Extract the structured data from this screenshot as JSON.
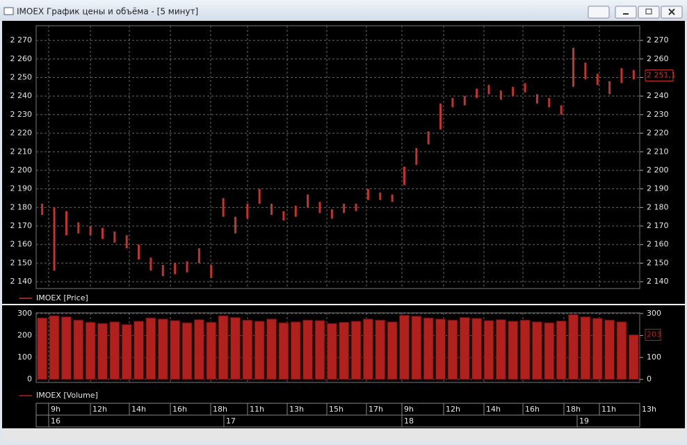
{
  "window": {
    "title": "IMOEX График цены и объёма - [5 минут]"
  },
  "time_axis": {
    "xlim": [
      0,
      100
    ],
    "ticks": [
      {
        "value": 2.07,
        "label": "9h"
      },
      {
        "value": 8.99,
        "label": "12h"
      },
      {
        "value": 15.44,
        "label": "14h"
      },
      {
        "value": 22.24,
        "label": "16h"
      },
      {
        "value": 28.92,
        "label": "18h"
      },
      {
        "value": 35.02,
        "label": "11h"
      },
      {
        "value": 41.59,
        "label": "13h"
      },
      {
        "value": 48.16,
        "label": "15h"
      },
      {
        "value": 54.72,
        "label": "17h"
      },
      {
        "value": 60.6,
        "label": "9h"
      },
      {
        "value": 67.51,
        "label": "12h"
      },
      {
        "value": 74.19,
        "label": "14h"
      },
      {
        "value": 80.65,
        "label": "16h"
      },
      {
        "value": 87.44,
        "label": "18h"
      },
      {
        "value": 93.32,
        "label": "11h"
      },
      {
        "value": 100,
        "label": "13h"
      }
    ],
    "day_ticks": [
      {
        "value": 2.07,
        "label": "16"
      },
      {
        "value": 31.1,
        "label": "17"
      },
      {
        "value": 60.6,
        "label": "18"
      },
      {
        "value": 89.63,
        "label": "19"
      }
    ]
  },
  "chart_data": [
    {
      "type": "ohlc",
      "grid": true,
      "series": [
        {
          "name": "IMOEX [Price]",
          "color": "#c8322c",
          "x": [
            1,
            3,
            5,
            7,
            9,
            11,
            13,
            15,
            17,
            19,
            21,
            23,
            25,
            27,
            29,
            31,
            33,
            35,
            37,
            39,
            41,
            43,
            45,
            47,
            49,
            51,
            53,
            55,
            57,
            59,
            61,
            63,
            65,
            67,
            69,
            71,
            73,
            75,
            77,
            79,
            81,
            83,
            85,
            87,
            89,
            91,
            93,
            95,
            97,
            99
          ],
          "high": [
            2182,
            2180,
            2178,
            2172,
            2170,
            2169,
            2167,
            2165,
            2160,
            2153,
            2149,
            2150,
            2151,
            2158,
            2149,
            2185,
            2175,
            2182,
            2190,
            2182,
            2178,
            2181,
            2187,
            2183,
            2179,
            2182,
            2182,
            2190,
            2188,
            2187,
            2202,
            2212,
            2221,
            2236,
            2239,
            2240,
            2244,
            2246,
            2243,
            2245,
            2247,
            2241,
            2239,
            2235,
            2266,
            2258,
            2252,
            2248,
            2255,
            2254
          ],
          "low": [
            2176,
            2146,
            2165,
            2166,
            2165,
            2163,
            2161,
            2158,
            2152,
            2146,
            2143,
            2144,
            2145,
            2150,
            2142,
            2175,
            2166,
            2174,
            2182,
            2176,
            2173,
            2175,
            2180,
            2177,
            2174,
            2177,
            2178,
            2184,
            2184,
            2183,
            2192,
            2203,
            2214,
            2222,
            2234,
            2235,
            2239,
            2241,
            2238,
            2240,
            2242,
            2236,
            2234,
            2230,
            2245,
            2249,
            2246,
            2241,
            2247,
            2249
          ]
        }
      ],
      "ylim": [
        2136.3,
        2277.9
      ],
      "yticks": [
        {
          "value": 2140,
          "label": "2 140"
        },
        {
          "value": 2150,
          "label": "2 150"
        },
        {
          "value": 2160,
          "label": "2 160"
        },
        {
          "value": 2170,
          "label": "2 170"
        },
        {
          "value": 2180,
          "label": "2 180"
        },
        {
          "value": 2190,
          "label": "2 190"
        },
        {
          "value": 2200,
          "label": "2 200"
        },
        {
          "value": 2210,
          "label": "2 210"
        },
        {
          "value": 2220,
          "label": "2 220"
        },
        {
          "value": 2230,
          "label": "2 230"
        },
        {
          "value": 2240,
          "label": "2 240"
        },
        {
          "value": 2250,
          "label": "2 250"
        },
        {
          "value": 2260,
          "label": "2 260"
        },
        {
          "value": 2270,
          "label": "2 270"
        }
      ],
      "last": {
        "value": 2251.1,
        "label": "2 251,1"
      }
    },
    {
      "type": "bar",
      "grid": true,
      "series": [
        {
          "name": "IMOEX [Volume]",
          "color": "#b0201c",
          "x": [
            1,
            3,
            5,
            7,
            9,
            11,
            13,
            15,
            17,
            19,
            21,
            23,
            25,
            27,
            29,
            31,
            33,
            35,
            37,
            39,
            41,
            43,
            45,
            47,
            49,
            51,
            53,
            55,
            57,
            59,
            61,
            63,
            65,
            67,
            69,
            71,
            73,
            75,
            77,
            79,
            81,
            83,
            85,
            87,
            89,
            91,
            93,
            95,
            97,
            99
          ],
          "values": [
            280,
            290,
            285,
            270,
            260,
            255,
            262,
            250,
            265,
            280,
            275,
            268,
            258,
            272,
            260,
            290,
            282,
            270,
            265,
            275,
            258,
            262,
            270,
            268,
            255,
            260,
            265,
            275,
            270,
            262,
            292,
            288,
            280,
            275,
            270,
            282,
            278,
            268,
            272,
            265,
            270,
            262,
            258,
            266,
            295,
            285,
            278,
            270,
            262,
            203
          ]
        }
      ],
      "ylim": [
        -13.6,
        302.7
      ],
      "yticks": [
        0,
        100,
        200,
        300
      ],
      "last": 203
    }
  ]
}
